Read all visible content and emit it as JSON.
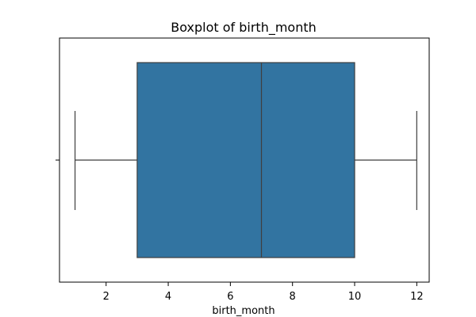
{
  "chart_data": {
    "type": "boxplot",
    "title": "Boxplot of birth_month",
    "xlabel": "birth_month",
    "ylabel": "",
    "xlim": [
      0.5,
      12.4
    ],
    "xticks": [
      2,
      4,
      6,
      8,
      10,
      12
    ],
    "grid": false,
    "orientation": "horizontal",
    "box": {
      "min": 1,
      "q1": 3,
      "median": 7,
      "q3": 10,
      "max": 12
    },
    "colors": {
      "box_fill": "#3274a1",
      "line": "#3f3f3f",
      "axis": "#000000"
    }
  }
}
